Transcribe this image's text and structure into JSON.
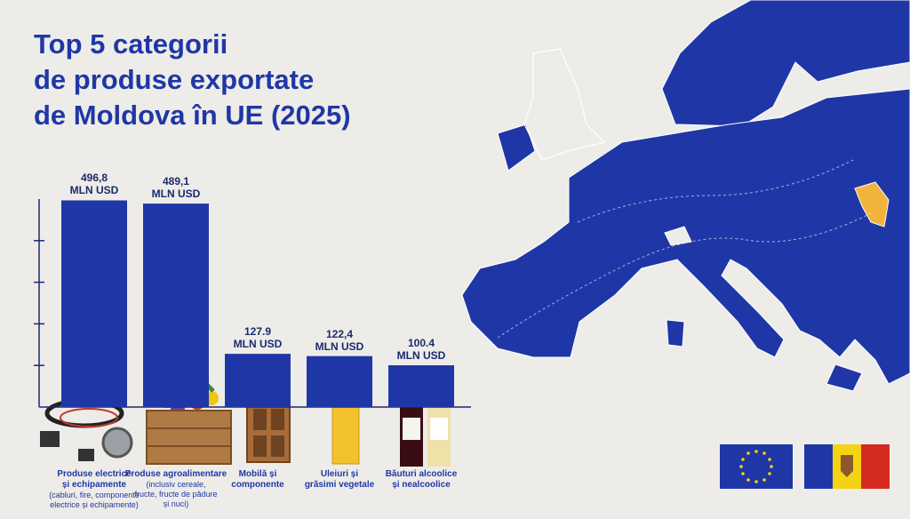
{
  "chart_data": {
    "type": "bar",
    "title": "Top 5 categorii\nde produse exportate\nde Moldova în UE (2025)",
    "categories": [
      "Produse electrice\nși echipamente",
      "Produse agroalimentare",
      "Mobilă și\ncomponente",
      "Uleiuri și\ngrăsimi vegetale",
      "Băuturi alcoolice\nși nealcoolice"
    ],
    "category_details": [
      "(cabluri, fire, componente\nelectrice și echipamente)",
      "(inclusiv cereale,\nfructe, fructe de pădure\nși nuci)",
      null,
      null,
      null
    ],
    "values": [
      496.8,
      489.1,
      127.9,
      122.4,
      100.4
    ],
    "value_labels": [
      "496,8",
      "489,1",
      "127.9",
      "122,4",
      "100.4"
    ],
    "unit": "MLN USD",
    "color": "#1f37a6",
    "ylim": [
      0,
      500
    ],
    "yticks": [
      100,
      200,
      300,
      400
    ]
  }
}
